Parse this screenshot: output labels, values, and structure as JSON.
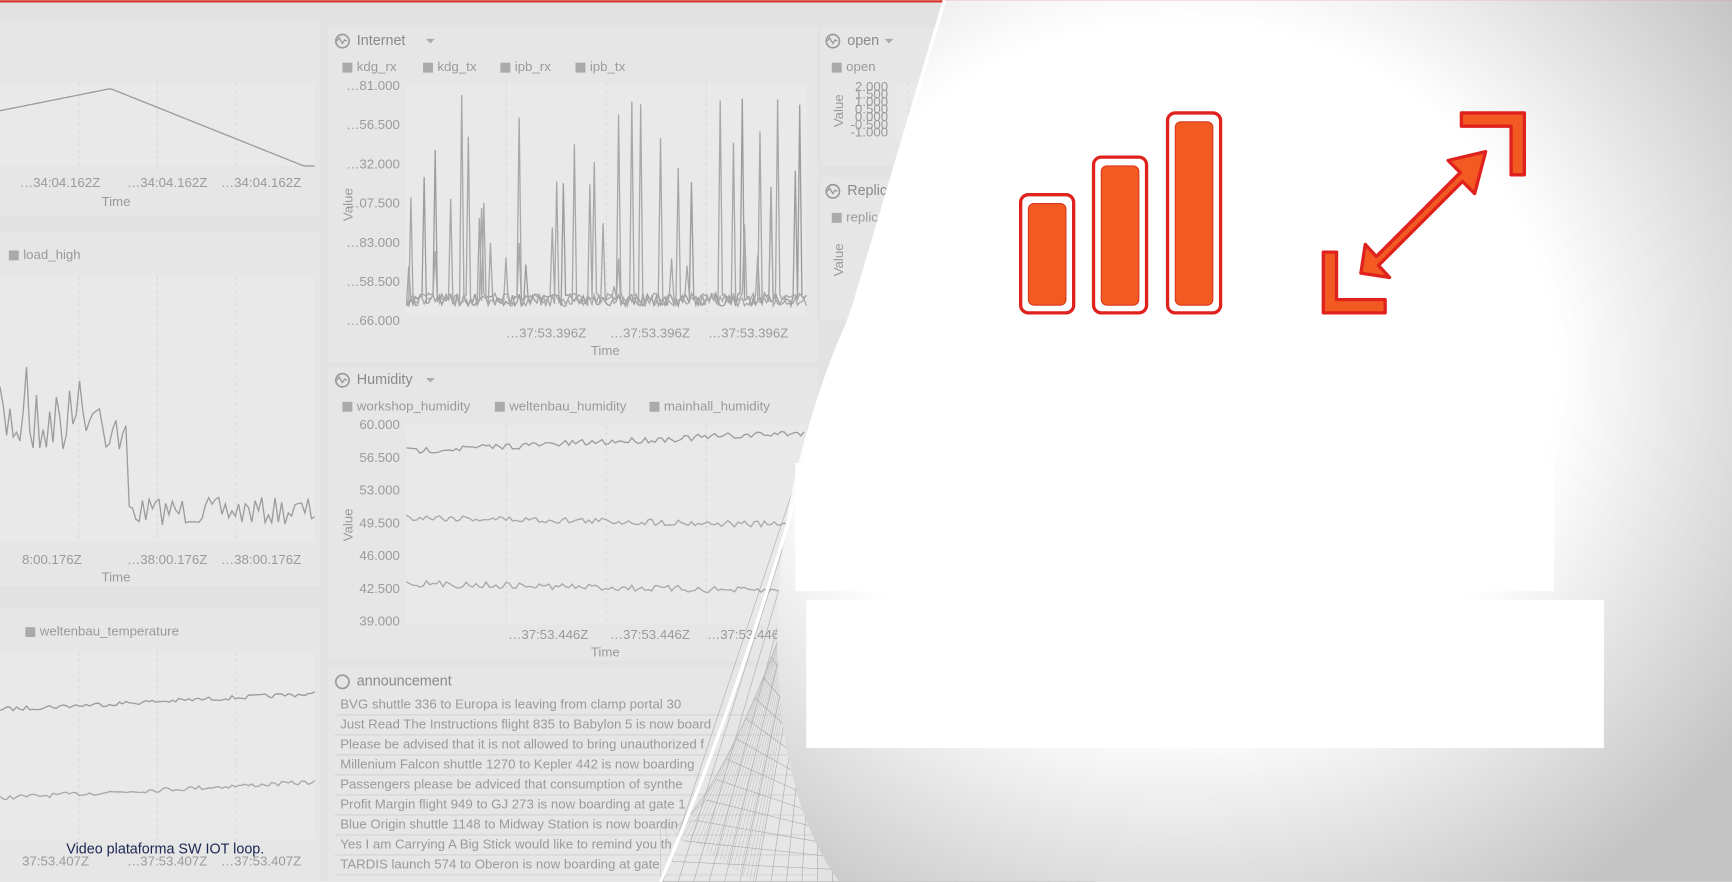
{
  "caption": "Video plataforma SW IOT loop.",
  "panels": [
    {
      "legend": [],
      "x_ticks": [
        "…34:04.162Z",
        "…34:04.162Z",
        "…34:04.162Z"
      ],
      "x_label": "Time"
    },
    {
      "legend": [
        "load_high"
      ],
      "x_ticks": [
        "8:00.176Z",
        "…38:00.176Z",
        "…38:00.176Z"
      ],
      "x_label": "Time"
    },
    {
      "legend": [
        "weltenbau_temperature"
      ],
      "x_ticks": [
        "37:53.407Z",
        "…37:53.407Z",
        "…37:53.407Z"
      ]
    },
    {
      "title": "Internet",
      "legend": [
        "kdg_rx",
        "kdg_tx",
        "ipb_rx",
        "ipb_tx"
      ],
      "y_ticks": [
        "…81.000",
        "…56.500",
        "…32.000",
        "…07.500",
        "…83.000",
        "…58.500",
        "…66.000"
      ],
      "x_ticks": [
        "…37:53.396Z",
        "…37:53.396Z",
        "…37:53.396Z"
      ],
      "x_label": "Time",
      "y_label": "Value"
    },
    {
      "title": "Humidity",
      "legend": [
        "workshop_humidity",
        "weltenbau_humidity",
        "mainhall_humidity"
      ],
      "y_ticks": [
        "60.000",
        "56.500",
        "53.000",
        "49.500",
        "46.000",
        "42.500",
        "39.000"
      ],
      "x_ticks": [
        "…37:53.446Z",
        "…37:53.446Z",
        "…37:53.446"
      ],
      "x_label": "Time",
      "y_label": "Value"
    },
    {
      "title": "open",
      "legend": [
        "open"
      ],
      "y_ticks": [
        "2.000",
        "1.500",
        "1.000",
        "0.500",
        "0.000",
        "-0.500",
        "-1.000"
      ],
      "y_label": "Value"
    },
    {
      "title": "Replic",
      "legend": [
        "replic"
      ],
      "y_label": "Value"
    }
  ],
  "announcement": {
    "title": "announcement",
    "lines": [
      "BVG shuttle 336 to Europa is leaving from clamp portal 30",
      "Just Read The Instructions flight 835 to Babylon 5 is now board",
      "Please be advised that it is not allowed to bring unauthorized f",
      "Millenium Falcon shuttle 1270 to Kepler 442 is now boarding",
      "Passengers please be adviced that consumption of synthe",
      "Profit Margin flight 949 to GJ 273 is now boarding at gate 1",
      "Blue Origin shuttle 1148 to Midway Station is now boardin",
      "Yes I am Carrying A Big Stick would like to remind you th",
      "TARDIS launch 574 to Oberon is now boarding at gate"
    ]
  }
}
